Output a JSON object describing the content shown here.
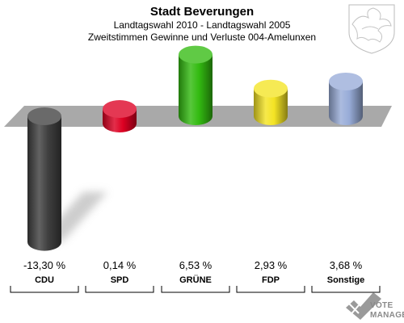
{
  "chart_data": {
    "type": "bar",
    "title": "Stadt Beverungen",
    "subtitle_1": "Landtagswahl 2010 - Landtagswahl 2005",
    "subtitle_2": "Zweitstimmen Gewinne und Verluste 004-Amelunxen",
    "categories": [
      "CDU",
      "SPD",
      "GRÜNE",
      "FDP",
      "Sonstige"
    ],
    "values": [
      -13.3,
      0.14,
      6.53,
      2.93,
      3.68
    ],
    "value_labels": [
      "-13,30 %",
      "0,14 %",
      "6,53 %",
      "2,93 %",
      "3,68 %"
    ],
    "colors": [
      "#404040",
      "#dd0022",
      "#33bb11",
      "#f4e424",
      "#98acd8"
    ],
    "unit": "%",
    "grid": false,
    "legend": "none"
  },
  "branding": {
    "logo_line_1": "VOTE",
    "logo_line_2": "MANAGER"
  },
  "icons": {
    "coat_of_arms": "coat-of-arms-icon",
    "logo_mark": "vote-manager-check-icon"
  }
}
